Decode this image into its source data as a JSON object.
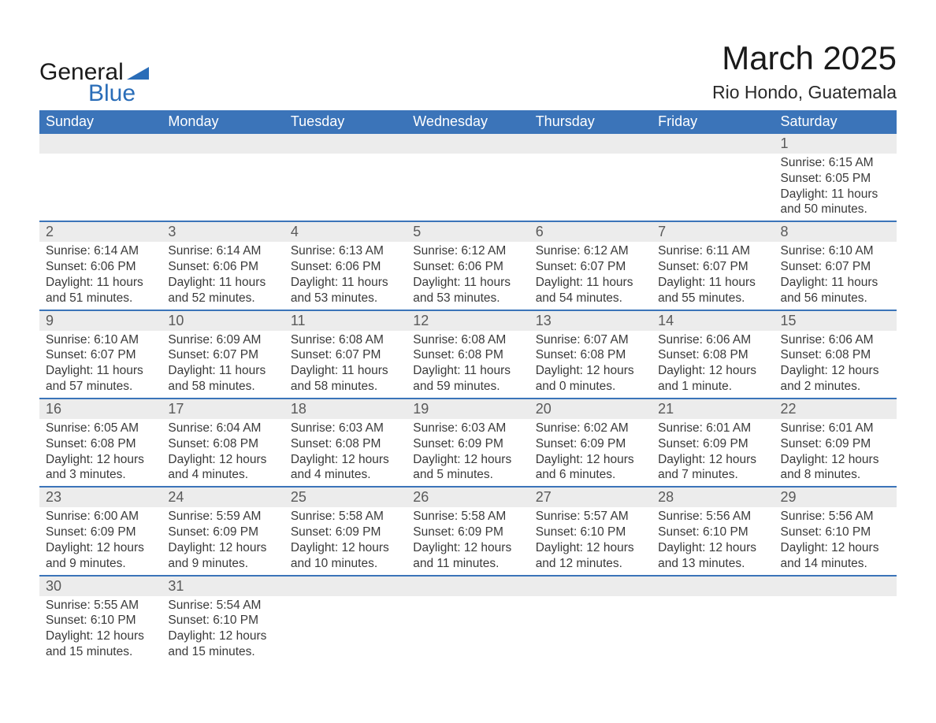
{
  "logo": {
    "text1": "General",
    "text2": "Blue"
  },
  "title": "March 2025",
  "location": "Rio Hondo, Guatemala",
  "colors": {
    "header_bg": "#3b74b9",
    "header_text": "#ffffff",
    "daynum_bg": "#ececec",
    "row_border": "#3b74b9",
    "body_text": "#3a3a3a",
    "page_bg": "#ffffff"
  },
  "typography": {
    "title_fontsize": 42,
    "location_fontsize": 23,
    "dayheader_fontsize": 18,
    "daynum_fontsize": 18,
    "daydata_fontsize": 15.5,
    "font_family": "Arial"
  },
  "day_headers": [
    "Sunday",
    "Monday",
    "Tuesday",
    "Wednesday",
    "Thursday",
    "Friday",
    "Saturday"
  ],
  "weeks": [
    {
      "nums": [
        "",
        "",
        "",
        "",
        "",
        "",
        "1"
      ],
      "data": [
        null,
        null,
        null,
        null,
        null,
        null,
        {
          "sunrise": "Sunrise: 6:15 AM",
          "sunset": "Sunset: 6:05 PM",
          "daylight": "Daylight: 11 hours and 50 minutes."
        }
      ]
    },
    {
      "nums": [
        "2",
        "3",
        "4",
        "5",
        "6",
        "7",
        "8"
      ],
      "data": [
        {
          "sunrise": "Sunrise: 6:14 AM",
          "sunset": "Sunset: 6:06 PM",
          "daylight": "Daylight: 11 hours and 51 minutes."
        },
        {
          "sunrise": "Sunrise: 6:14 AM",
          "sunset": "Sunset: 6:06 PM",
          "daylight": "Daylight: 11 hours and 52 minutes."
        },
        {
          "sunrise": "Sunrise: 6:13 AM",
          "sunset": "Sunset: 6:06 PM",
          "daylight": "Daylight: 11 hours and 53 minutes."
        },
        {
          "sunrise": "Sunrise: 6:12 AM",
          "sunset": "Sunset: 6:06 PM",
          "daylight": "Daylight: 11 hours and 53 minutes."
        },
        {
          "sunrise": "Sunrise: 6:12 AM",
          "sunset": "Sunset: 6:07 PM",
          "daylight": "Daylight: 11 hours and 54 minutes."
        },
        {
          "sunrise": "Sunrise: 6:11 AM",
          "sunset": "Sunset: 6:07 PM",
          "daylight": "Daylight: 11 hours and 55 minutes."
        },
        {
          "sunrise": "Sunrise: 6:10 AM",
          "sunset": "Sunset: 6:07 PM",
          "daylight": "Daylight: 11 hours and 56 minutes."
        }
      ]
    },
    {
      "nums": [
        "9",
        "10",
        "11",
        "12",
        "13",
        "14",
        "15"
      ],
      "data": [
        {
          "sunrise": "Sunrise: 6:10 AM",
          "sunset": "Sunset: 6:07 PM",
          "daylight": "Daylight: 11 hours and 57 minutes."
        },
        {
          "sunrise": "Sunrise: 6:09 AM",
          "sunset": "Sunset: 6:07 PM",
          "daylight": "Daylight: 11 hours and 58 minutes."
        },
        {
          "sunrise": "Sunrise: 6:08 AM",
          "sunset": "Sunset: 6:07 PM",
          "daylight": "Daylight: 11 hours and 58 minutes."
        },
        {
          "sunrise": "Sunrise: 6:08 AM",
          "sunset": "Sunset: 6:08 PM",
          "daylight": "Daylight: 11 hours and 59 minutes."
        },
        {
          "sunrise": "Sunrise: 6:07 AM",
          "sunset": "Sunset: 6:08 PM",
          "daylight": "Daylight: 12 hours and 0 minutes."
        },
        {
          "sunrise": "Sunrise: 6:06 AM",
          "sunset": "Sunset: 6:08 PM",
          "daylight": "Daylight: 12 hours and 1 minute."
        },
        {
          "sunrise": "Sunrise: 6:06 AM",
          "sunset": "Sunset: 6:08 PM",
          "daylight": "Daylight: 12 hours and 2 minutes."
        }
      ]
    },
    {
      "nums": [
        "16",
        "17",
        "18",
        "19",
        "20",
        "21",
        "22"
      ],
      "data": [
        {
          "sunrise": "Sunrise: 6:05 AM",
          "sunset": "Sunset: 6:08 PM",
          "daylight": "Daylight: 12 hours and 3 minutes."
        },
        {
          "sunrise": "Sunrise: 6:04 AM",
          "sunset": "Sunset: 6:08 PM",
          "daylight": "Daylight: 12 hours and 4 minutes."
        },
        {
          "sunrise": "Sunrise: 6:03 AM",
          "sunset": "Sunset: 6:08 PM",
          "daylight": "Daylight: 12 hours and 4 minutes."
        },
        {
          "sunrise": "Sunrise: 6:03 AM",
          "sunset": "Sunset: 6:09 PM",
          "daylight": "Daylight: 12 hours and 5 minutes."
        },
        {
          "sunrise": "Sunrise: 6:02 AM",
          "sunset": "Sunset: 6:09 PM",
          "daylight": "Daylight: 12 hours and 6 minutes."
        },
        {
          "sunrise": "Sunrise: 6:01 AM",
          "sunset": "Sunset: 6:09 PM",
          "daylight": "Daylight: 12 hours and 7 minutes."
        },
        {
          "sunrise": "Sunrise: 6:01 AM",
          "sunset": "Sunset: 6:09 PM",
          "daylight": "Daylight: 12 hours and 8 minutes."
        }
      ]
    },
    {
      "nums": [
        "23",
        "24",
        "25",
        "26",
        "27",
        "28",
        "29"
      ],
      "data": [
        {
          "sunrise": "Sunrise: 6:00 AM",
          "sunset": "Sunset: 6:09 PM",
          "daylight": "Daylight: 12 hours and 9 minutes."
        },
        {
          "sunrise": "Sunrise: 5:59 AM",
          "sunset": "Sunset: 6:09 PM",
          "daylight": "Daylight: 12 hours and 9 minutes."
        },
        {
          "sunrise": "Sunrise: 5:58 AM",
          "sunset": "Sunset: 6:09 PM",
          "daylight": "Daylight: 12 hours and 10 minutes."
        },
        {
          "sunrise": "Sunrise: 5:58 AM",
          "sunset": "Sunset: 6:09 PM",
          "daylight": "Daylight: 12 hours and 11 minutes."
        },
        {
          "sunrise": "Sunrise: 5:57 AM",
          "sunset": "Sunset: 6:10 PM",
          "daylight": "Daylight: 12 hours and 12 minutes."
        },
        {
          "sunrise": "Sunrise: 5:56 AM",
          "sunset": "Sunset: 6:10 PM",
          "daylight": "Daylight: 12 hours and 13 minutes."
        },
        {
          "sunrise": "Sunrise: 5:56 AM",
          "sunset": "Sunset: 6:10 PM",
          "daylight": "Daylight: 12 hours and 14 minutes."
        }
      ]
    },
    {
      "nums": [
        "30",
        "31",
        "",
        "",
        "",
        "",
        ""
      ],
      "data": [
        {
          "sunrise": "Sunrise: 5:55 AM",
          "sunset": "Sunset: 6:10 PM",
          "daylight": "Daylight: 12 hours and 15 minutes."
        },
        {
          "sunrise": "Sunrise: 5:54 AM",
          "sunset": "Sunset: 6:10 PM",
          "daylight": "Daylight: 12 hours and 15 minutes."
        },
        null,
        null,
        null,
        null,
        null
      ]
    }
  ]
}
